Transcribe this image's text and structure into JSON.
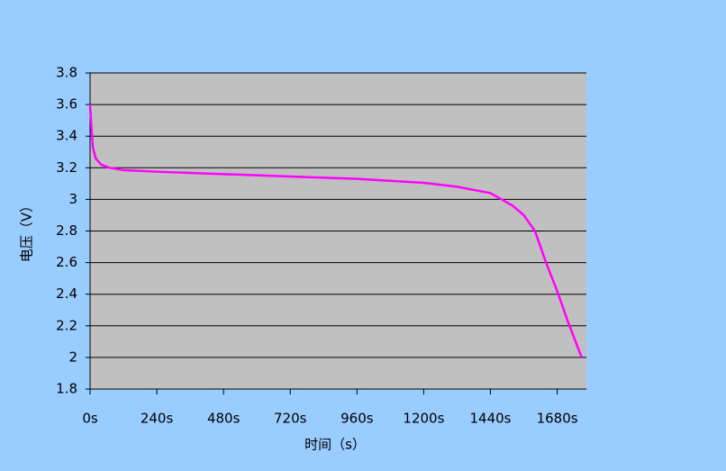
{
  "chart_data": {
    "type": "line",
    "x_label": "时间（s）",
    "y_label": "电压（V）",
    "x": [
      0,
      5,
      10,
      20,
      40,
      70,
      120,
      240,
      480,
      720,
      960,
      1200,
      1320,
      1440,
      1480,
      1520,
      1560,
      1600,
      1640,
      1680,
      1720,
      1768
    ],
    "series": [
      {
        "color": "#ff00ff",
        "values": [
          3.6,
          3.45,
          3.33,
          3.26,
          3.22,
          3.2,
          3.185,
          3.175,
          3.16,
          3.145,
          3.13,
          3.105,
          3.08,
          3.04,
          3.0,
          2.96,
          2.9,
          2.8,
          2.6,
          2.42,
          2.22,
          2.0
        ]
      }
    ],
    "xlim": [
      0,
      1785
    ],
    "xticks": [
      {
        "value": 0,
        "label": "0s"
      },
      {
        "value": 240,
        "label": "240s"
      },
      {
        "value": 480,
        "label": "480s"
      },
      {
        "value": 720,
        "label": "720s"
      },
      {
        "value": 960,
        "label": "960s"
      },
      {
        "value": 1200,
        "label": "1200s"
      },
      {
        "value": 1440,
        "label": "1440s"
      },
      {
        "value": 1680,
        "label": "1680s"
      }
    ],
    "ylim": [
      1.8,
      3.8
    ],
    "yticks": [
      1.8,
      2,
      2.2,
      2.4,
      2.6,
      2.8,
      3,
      3.2,
      3.4,
      3.6,
      3.8
    ],
    "grid": true
  }
}
